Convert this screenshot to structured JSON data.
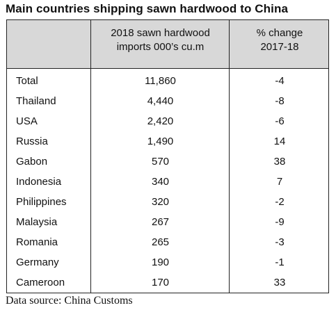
{
  "title": "Main countries shipping sawn hardwood to China",
  "source": "Data source: China Customs",
  "chart_data": {
    "type": "table",
    "columns": [
      "",
      [
        "2018 sawn hardwood",
        "imports 000’s cu.m"
      ],
      [
        "% change",
        "2017-18"
      ]
    ],
    "rows": [
      {
        "country": "Total",
        "imports": "11,860",
        "change": "-4"
      },
      {
        "country": "Thailand",
        "imports": "4,440",
        "change": "-8"
      },
      {
        "country": "USA",
        "imports": "2,420",
        "change": "-6"
      },
      {
        "country": "Russia",
        "imports": "1,490",
        "change": "14"
      },
      {
        "country": "Gabon",
        "imports": "570",
        "change": "38"
      },
      {
        "country": "Indonesia",
        "imports": "340",
        "change": "7"
      },
      {
        "country": "Philippines",
        "imports": "320",
        "change": "-2"
      },
      {
        "country": "Malaysia",
        "imports": "267",
        "change": "-9"
      },
      {
        "country": "Romania",
        "imports": "265",
        "change": "-3"
      },
      {
        "country": "Germany",
        "imports": "190",
        "change": "-1"
      },
      {
        "country": "Cameroon",
        "imports": "170",
        "change": "33"
      }
    ]
  }
}
